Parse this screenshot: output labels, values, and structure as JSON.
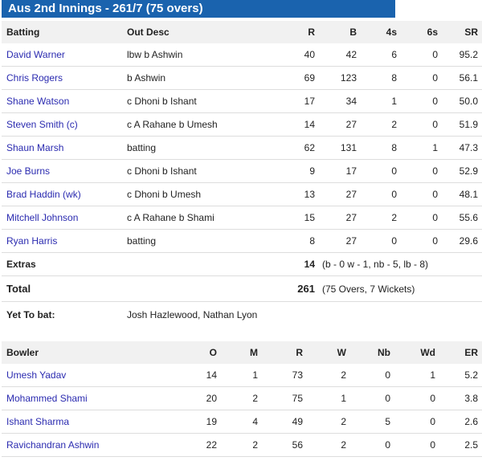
{
  "title": "Aus 2nd Innings - 261/7 (75 overs)",
  "batting": {
    "headers": [
      "Batting",
      "Out Desc",
      "R",
      "B",
      "4s",
      "6s",
      "SR"
    ],
    "rows": [
      {
        "name": "David Warner",
        "desc": "lbw b Ashwin",
        "r": "40",
        "b": "42",
        "fours": "6",
        "sixes": "0",
        "sr": "95.2"
      },
      {
        "name": "Chris Rogers",
        "desc": "b Ashwin",
        "r": "69",
        "b": "123",
        "fours": "8",
        "sixes": "0",
        "sr": "56.1"
      },
      {
        "name": "Shane Watson",
        "desc": "c Dhoni b Ishant",
        "r": "17",
        "b": "34",
        "fours": "1",
        "sixes": "0",
        "sr": "50.0"
      },
      {
        "name": "Steven Smith (c)",
        "desc": "c A Rahane b Umesh",
        "r": "14",
        "b": "27",
        "fours": "2",
        "sixes": "0",
        "sr": "51.9"
      },
      {
        "name": "Shaun Marsh",
        "desc": "batting",
        "r": "62",
        "b": "131",
        "fours": "8",
        "sixes": "1",
        "sr": "47.3"
      },
      {
        "name": "Joe Burns",
        "desc": "c Dhoni b Ishant",
        "r": "9",
        "b": "17",
        "fours": "0",
        "sixes": "0",
        "sr": "52.9"
      },
      {
        "name": "Brad Haddin (wk)",
        "desc": "c Dhoni b Umesh",
        "r": "13",
        "b": "27",
        "fours": "0",
        "sixes": "0",
        "sr": "48.1"
      },
      {
        "name": "Mitchell Johnson",
        "desc": "c A Rahane b Shami",
        "r": "15",
        "b": "27",
        "fours": "2",
        "sixes": "0",
        "sr": "55.6"
      },
      {
        "name": "Ryan Harris",
        "desc": "batting",
        "r": "8",
        "b": "27",
        "fours": "0",
        "sixes": "0",
        "sr": "29.6"
      }
    ],
    "extras": {
      "label": "Extras",
      "value": "14",
      "detail": "(b - 0 w - 1, nb - 5, lb - 8)"
    },
    "total": {
      "label": "Total",
      "value": "261",
      "detail": "(75 Overs, 7 Wickets)"
    },
    "yet_to_bat": {
      "label": "Yet To bat:",
      "value": "Josh Hazlewood, Nathan Lyon"
    }
  },
  "bowling": {
    "headers": [
      "Bowler",
      "O",
      "M",
      "R",
      "W",
      "Nb",
      "Wd",
      "ER"
    ],
    "rows": [
      {
        "name": "Umesh Yadav",
        "o": "14",
        "m": "1",
        "r": "73",
        "w": "2",
        "nb": "0",
        "wd": "1",
        "er": "5.2"
      },
      {
        "name": "Mohammed Shami",
        "o": "20",
        "m": "2",
        "r": "75",
        "w": "1",
        "nb": "0",
        "wd": "0",
        "er": "3.8"
      },
      {
        "name": "Ishant Sharma",
        "o": "19",
        "m": "4",
        "r": "49",
        "w": "2",
        "nb": "5",
        "wd": "0",
        "er": "2.6"
      },
      {
        "name": "Ravichandran Ashwin",
        "o": "22",
        "m": "2",
        "r": "56",
        "w": "2",
        "nb": "0",
        "wd": "0",
        "er": "2.5"
      }
    ]
  },
  "colors": {
    "title_bg": "#1a63ae",
    "link": "#2b2bb0",
    "header_bg": "#f1f1f1"
  }
}
